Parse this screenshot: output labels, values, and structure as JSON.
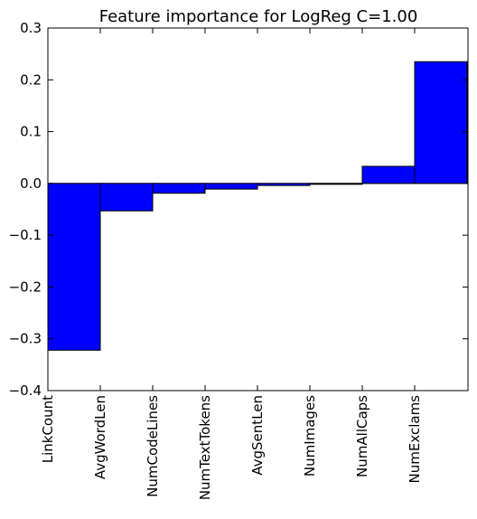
{
  "chart_data": {
    "type": "bar",
    "title": "Feature importance for LogReg C=1.00",
    "xlabel": "",
    "ylabel": "",
    "categories": [
      "LinkCount",
      "AvgWordLen",
      "NumCodeLines",
      "NumTextTokens",
      "AvgSentLen",
      "NumImages",
      "NumAllCaps",
      "NumExclams"
    ],
    "values": [
      -0.322,
      -0.053,
      -0.019,
      -0.011,
      -0.004,
      -0.001,
      0.033,
      0.235
    ],
    "ylim": [
      -0.4,
      0.3
    ],
    "yticks": [
      0.3,
      0.2,
      0.1,
      0.0,
      -0.1,
      -0.2,
      -0.3,
      -0.4
    ],
    "ytick_labels": [
      "0.3",
      "0.2",
      "0.1",
      "0.0",
      "−0.1",
      "−0.2",
      "−0.3",
      "−0.4"
    ],
    "grid": false,
    "bar_color": "#0000ff",
    "edge_color": "#000000"
  }
}
